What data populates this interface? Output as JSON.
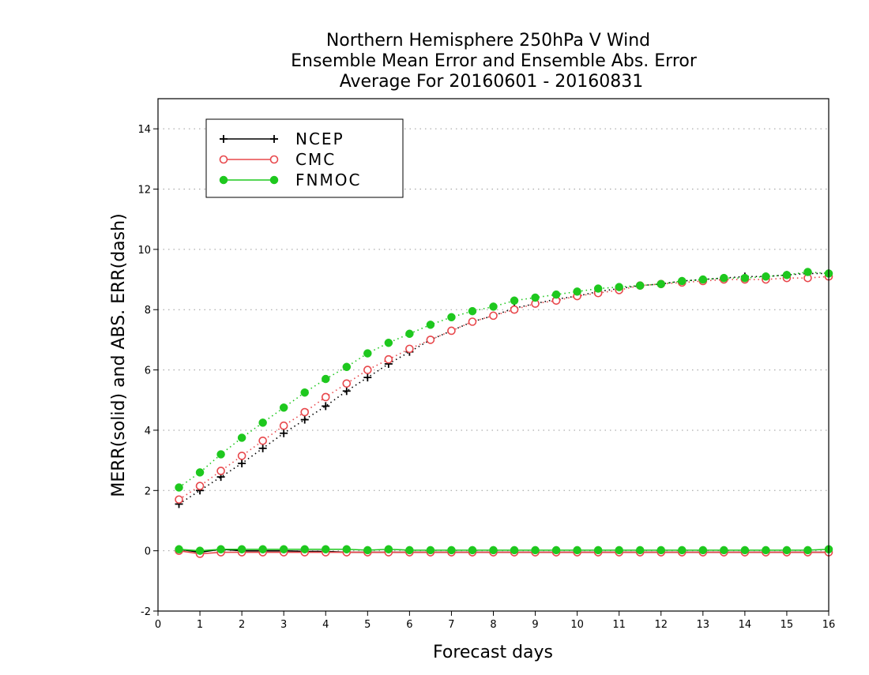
{
  "colors": {
    "NCEP": "#000000",
    "CMC": "#e8484c",
    "FNMOC": "#1ec81e",
    "grid": "#9a9a9a",
    "frame": "#000000"
  },
  "chart_data": {
    "type": "line",
    "title": [
      "Northern Hemisphere 250hPa V Wind",
      "Ensemble Mean Error and Ensemble Abs. Error",
      "Average For 20160601 - 20160831"
    ],
    "xlabel": "Forecast days",
    "ylabel": "MERR(solid) and ABS. ERR(dash)",
    "xlim": [
      0,
      16
    ],
    "ylim": [
      -2,
      15
    ],
    "xticks": [
      "0",
      "1",
      "2",
      "3",
      "4",
      "5",
      "6",
      "7",
      "8",
      "9",
      "10",
      "11",
      "12",
      "13",
      "14",
      "15",
      "16"
    ],
    "yticks": [
      "-2",
      "0",
      "2",
      "4",
      "6",
      "8",
      "10",
      "12",
      "14"
    ],
    "grid": "horizontal-dotted",
    "legend": {
      "placement": "top-left",
      "entries": [
        "NCEP",
        "CMC",
        "FNMOC"
      ]
    },
    "x": [
      0.5,
      1,
      1.5,
      2,
      2.5,
      3,
      3.5,
      4,
      4.5,
      5,
      5.5,
      6,
      6.5,
      7,
      7.5,
      8,
      8.5,
      9,
      9.5,
      10,
      10.5,
      11,
      11.5,
      12,
      12.5,
      13,
      13.5,
      14,
      14.5,
      15,
      15.5,
      16
    ],
    "series": [
      {
        "name": "NCEP",
        "marker": "plus",
        "abs_err": [
          1.55,
          2.0,
          2.45,
          2.9,
          3.4,
          3.9,
          4.35,
          4.8,
          5.3,
          5.75,
          6.2,
          6.6,
          7.0,
          7.3,
          7.6,
          7.8,
          8.05,
          8.2,
          8.35,
          8.45,
          8.6,
          8.7,
          8.8,
          8.85,
          8.95,
          9.0,
          9.05,
          9.1,
          9.1,
          9.15,
          9.2,
          9.2
        ],
        "mean_err": [
          0.05,
          -0.05,
          0.05,
          0.0,
          0.0,
          0.0,
          -0.02,
          -0.02,
          -0.05,
          -0.05,
          -0.05,
          -0.05,
          -0.05,
          -0.05,
          -0.05,
          -0.05,
          -0.05,
          -0.05,
          -0.05,
          -0.05,
          -0.05,
          -0.05,
          -0.05,
          -0.05,
          -0.05,
          -0.05,
          -0.05,
          -0.05,
          -0.05,
          -0.05,
          -0.05,
          -0.05
        ]
      },
      {
        "name": "CMC",
        "marker": "open-circle",
        "abs_err": [
          1.7,
          2.15,
          2.65,
          3.15,
          3.65,
          4.15,
          4.6,
          5.1,
          5.55,
          6.0,
          6.35,
          6.7,
          7.0,
          7.3,
          7.6,
          7.8,
          8.0,
          8.2,
          8.3,
          8.45,
          8.55,
          8.65,
          8.8,
          8.85,
          8.9,
          8.95,
          9.0,
          9.0,
          9.0,
          9.05,
          9.05,
          9.1
        ],
        "mean_err": [
          0.0,
          -0.1,
          -0.05,
          -0.05,
          -0.05,
          -0.05,
          -0.05,
          -0.05,
          -0.05,
          -0.05,
          -0.05,
          -0.05,
          -0.05,
          -0.05,
          -0.05,
          -0.05,
          -0.05,
          -0.05,
          -0.05,
          -0.05,
          -0.05,
          -0.05,
          -0.05,
          -0.05,
          -0.05,
          -0.05,
          -0.05,
          -0.05,
          -0.05,
          -0.05,
          -0.05,
          -0.05
        ]
      },
      {
        "name": "FNMOC",
        "marker": "filled-circle",
        "abs_err": [
          2.1,
          2.6,
          3.2,
          3.75,
          4.25,
          4.75,
          5.25,
          5.7,
          6.1,
          6.55,
          6.9,
          7.2,
          7.5,
          7.75,
          7.95,
          8.1,
          8.3,
          8.4,
          8.5,
          8.6,
          8.7,
          8.75,
          8.8,
          8.85,
          8.95,
          9.0,
          9.05,
          9.05,
          9.1,
          9.15,
          9.25,
          9.2
        ],
        "mean_err": [
          0.05,
          0.0,
          0.05,
          0.05,
          0.05,
          0.05,
          0.05,
          0.05,
          0.05,
          0.02,
          0.05,
          0.02,
          0.02,
          0.02,
          0.02,
          0.02,
          0.02,
          0.02,
          0.02,
          0.02,
          0.02,
          0.02,
          0.02,
          0.02,
          0.02,
          0.02,
          0.02,
          0.02,
          0.02,
          0.02,
          0.02,
          0.05
        ]
      }
    ]
  }
}
